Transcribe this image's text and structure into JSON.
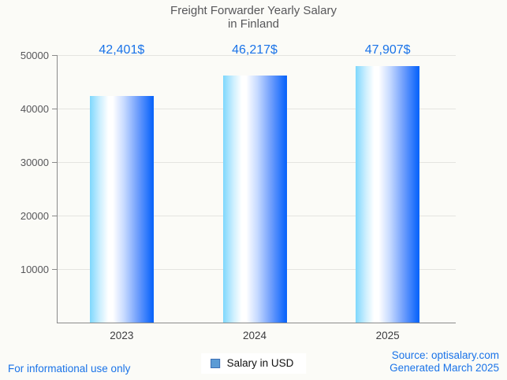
{
  "title": {
    "line1": "Freight Forwarder Yearly Salary",
    "line2": "in Finland"
  },
  "footer": {
    "disclaimer": "For informational use only",
    "source_line1": "Source: optisalary.com",
    "source_line2": "Generated March 2025"
  },
  "legend": {
    "label": "Salary in USD",
    "marker_color": "#5b9bd5"
  },
  "colors": {
    "value_label": "#1a73e8",
    "bar_gradient_left": "#7ed7fd",
    "bar_gradient_middle": "#ffffff",
    "bar_gradient_right": "#0b64fa",
    "background": "#fbfbf7",
    "grid": "#e4e4e0",
    "axis": "#8a8a8a"
  },
  "chart_data": {
    "type": "bar",
    "title": "Freight Forwarder Yearly Salary in Finland",
    "categories": [
      "2023",
      "2024",
      "2025"
    ],
    "values": [
      42401,
      46217,
      47907
    ],
    "value_labels": [
      "42,401$",
      "46,217$",
      "47,907$"
    ],
    "series": [
      {
        "name": "Salary in USD",
        "values": [
          42401,
          46217,
          47907
        ]
      }
    ],
    "xlabel": "",
    "ylabel": "",
    "ylim": [
      0,
      50000
    ],
    "ytick_step": 10000,
    "ytick_labels": [
      "10000",
      "20000",
      "30000",
      "40000",
      "50000"
    ],
    "grid": true,
    "legend_position": "bottom-center"
  }
}
